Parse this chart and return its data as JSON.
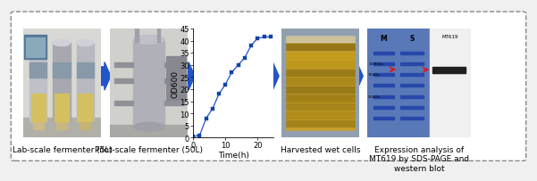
{
  "background_color": "#f0f0f0",
  "border_color": "#888888",
  "arrow_color": "#2255cc",
  "panel_labels": [
    "Lab-scale fermenter (5L)",
    "Pilot-scale fermenter (50L)",
    "",
    "Harvested wet cells",
    "Expression analysis of\nMT619 by SDS-PAGE and\nwestern blot"
  ],
  "graph_xlabel": "Time(h)",
  "graph_ylabel": "OD600",
  "graph_xlim": [
    0,
    25
  ],
  "graph_ylim": [
    0,
    45
  ],
  "graph_yticks": [
    0,
    5,
    10,
    15,
    20,
    25,
    30,
    35,
    40,
    45
  ],
  "graph_xticks": [
    0,
    10,
    20
  ],
  "time_data": [
    0,
    2,
    4,
    6,
    8,
    10,
    12,
    14,
    16,
    18,
    20,
    22,
    24
  ],
  "od_data": [
    0.5,
    1.0,
    8.0,
    12.0,
    18.0,
    22.0,
    27.0,
    30.0,
    33.0,
    38.0,
    41.0,
    41.5,
    41.5
  ],
  "line_color": "#2255cc",
  "marker_color": "#1144aa",
  "font_size_label": 6.5,
  "font_size_axis": 6,
  "fig_width": 5.81,
  "fig_height": 1.75
}
